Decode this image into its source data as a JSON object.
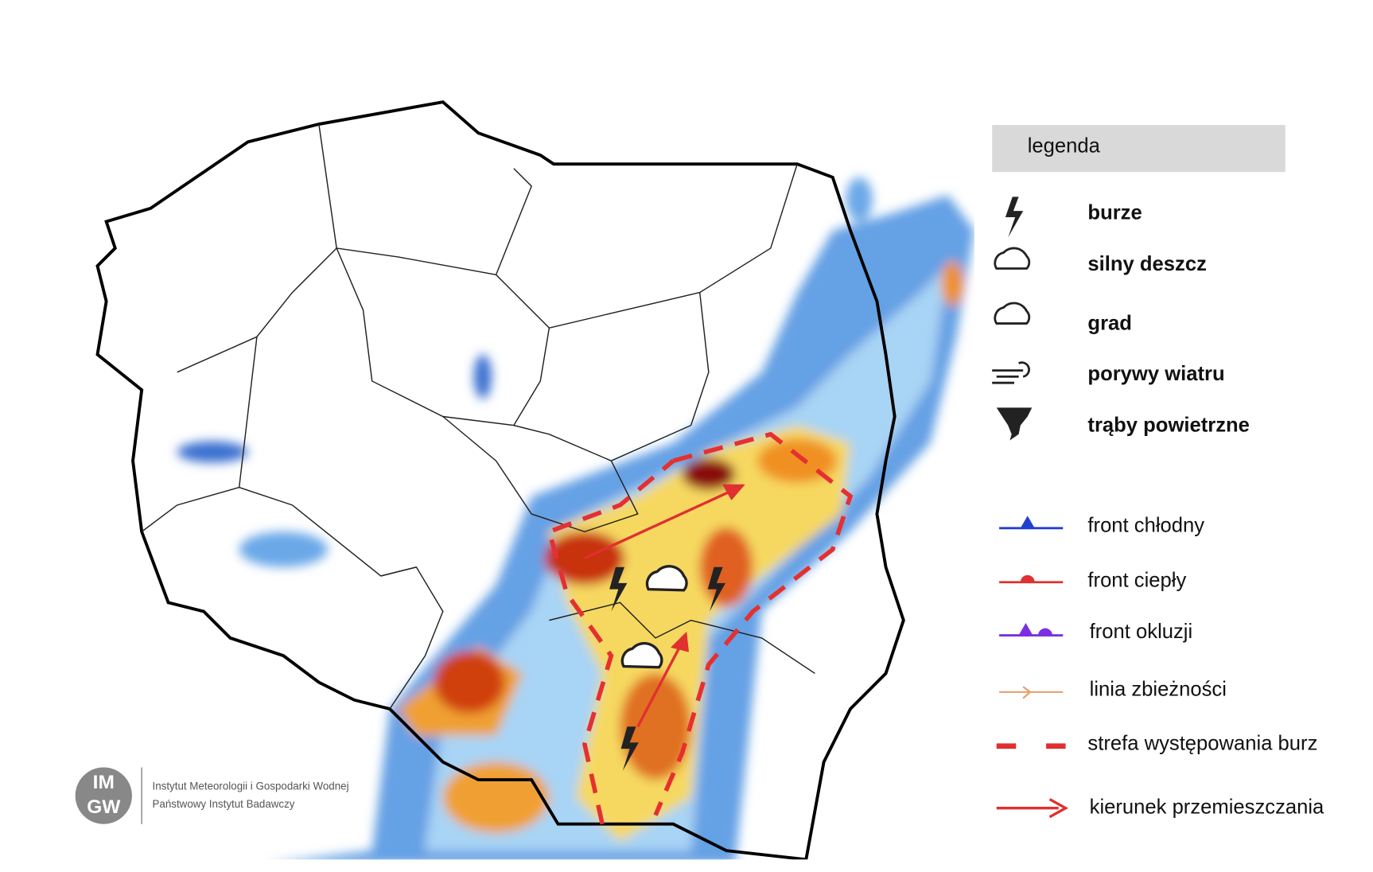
{
  "legend": {
    "title": "legenda",
    "items": [
      "burze",
      "silny deszcz",
      "grad",
      "porywy wiatru",
      "trąby powietrzne",
      "front chłodny",
      "front ciepły",
      "front okluzji",
      "linia zbieżności",
      "strefa występowania burz",
      "kierunek przemieszczania"
    ]
  },
  "logo": {
    "mark_top": "IM",
    "mark_bottom": "GW",
    "line1": "Instytut Meteorologii i Gospodarki Wodnej",
    "line2": "Państwowy Instytut Badawczy"
  }
}
